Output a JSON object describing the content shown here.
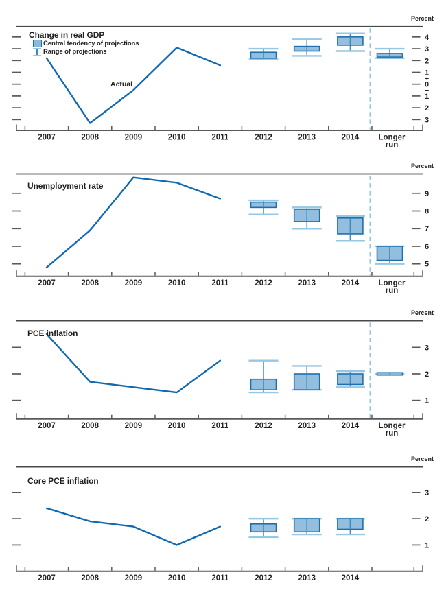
{
  "labels": {
    "percent": "Percent",
    "actual": "Actual",
    "longer_run": [
      "Longer",
      "run"
    ]
  },
  "legend": {
    "central_tendency": "Central tendency of projections",
    "range": "Range of projections"
  },
  "colors": {
    "actual_line": "#1269af",
    "box_fill": "#8bb9da",
    "box_border": "#1e6fad",
    "whisker_cap": "#96c7e4",
    "whisker_line": "#3a8bc2",
    "dashed_divider": "#92c5e3",
    "axis": "#59595b",
    "top_rule": "#48484a",
    "text": "#231f20"
  },
  "chart_data": [
    {
      "type": "line",
      "title": "Change in real GDP",
      "unit": "Percent",
      "categories": [
        "2007",
        "2008",
        "2009",
        "2010",
        "2011"
      ],
      "x": [
        2007,
        2008,
        2009,
        2010,
        2011
      ],
      "values": [
        2.2,
        -3.3,
        -0.5,
        3.1,
        1.6
      ],
      "ylim": [
        -3.91,
        4.88
      ],
      "yticks": [
        4,
        3,
        2,
        1,
        0,
        -1,
        -2,
        -3
      ],
      "ytick_labels": [
        "4",
        "3",
        "2",
        "1",
        "0",
        "1",
        "2",
        "3"
      ],
      "zero_marks": true,
      "grid": false,
      "legend_position": "top-left",
      "projections": [
        {
          "period": "2012",
          "central_tendency": [
            2.2,
            2.7
          ],
          "range": [
            2.1,
            3.0
          ]
        },
        {
          "period": "2013",
          "central_tendency": [
            2.8,
            3.2
          ],
          "range": [
            2.4,
            3.8
          ]
        },
        {
          "period": "2014",
          "central_tendency": [
            3.3,
            4.0
          ],
          "range": [
            2.8,
            4.3
          ]
        },
        {
          "period": "Longer run",
          "central_tendency": [
            2.3,
            2.6
          ],
          "range": [
            2.2,
            3.0
          ]
        }
      ],
      "has_longer_run": true
    },
    {
      "type": "line",
      "title": "Unemployment rate",
      "unit": "Percent",
      "categories": [
        "2007",
        "2008",
        "2009",
        "2010",
        "2011"
      ],
      "x": [
        2007,
        2008,
        2009,
        2010,
        2011
      ],
      "values": [
        4.8,
        6.9,
        9.9,
        9.6,
        8.7
      ],
      "ylim": [
        4.3,
        10.1
      ],
      "yticks": [
        9,
        8,
        7,
        6,
        5
      ],
      "ytick_labels": [
        "9",
        "8",
        "7",
        "6",
        "5"
      ],
      "zero_marks": false,
      "grid": false,
      "projections": [
        {
          "period": "2012",
          "central_tendency": [
            8.2,
            8.5
          ],
          "range": [
            7.8,
            8.6
          ]
        },
        {
          "period": "2013",
          "central_tendency": [
            7.4,
            8.1
          ],
          "range": [
            7.0,
            8.2
          ]
        },
        {
          "period": "2014",
          "central_tendency": [
            6.7,
            7.6
          ],
          "range": [
            6.3,
            7.7
          ]
        },
        {
          "period": "Longer run",
          "central_tendency": [
            5.2,
            6.0
          ],
          "range": [
            5.0,
            6.0
          ]
        }
      ],
      "has_longer_run": true
    },
    {
      "type": "line",
      "title": "PCE inflation",
      "unit": "Percent",
      "categories": [
        "2007",
        "2008",
        "2009",
        "2010",
        "2011"
      ],
      "x": [
        2007,
        2008,
        2009,
        2010,
        2011
      ],
      "values": [
        3.5,
        1.7,
        1.5,
        1.3,
        2.5
      ],
      "ylim": [
        0.3,
        4.0
      ],
      "yticks": [
        3,
        2,
        1
      ],
      "ytick_labels": [
        "3",
        "2",
        "1"
      ],
      "zero_marks": false,
      "grid": false,
      "projections": [
        {
          "period": "2012",
          "central_tendency": [
            1.4,
            1.8
          ],
          "range": [
            1.3,
            2.5
          ]
        },
        {
          "period": "2013",
          "central_tendency": [
            1.4,
            2.0
          ],
          "range": [
            1.4,
            2.3
          ]
        },
        {
          "period": "2014",
          "central_tendency": [
            1.6,
            2.0
          ],
          "range": [
            1.5,
            2.1
          ]
        },
        {
          "period": "Longer run",
          "central_tendency": [
            2.0,
            2.0
          ],
          "range": [
            2.0,
            2.0
          ]
        }
      ],
      "has_longer_run": true
    },
    {
      "type": "line",
      "title": "Core PCE inflation",
      "unit": "Percent",
      "categories": [
        "2007",
        "2008",
        "2009",
        "2010",
        "2011"
      ],
      "x": [
        2007,
        2008,
        2009,
        2010,
        2011
      ],
      "values": [
        2.4,
        1.9,
        1.7,
        1.0,
        1.7
      ],
      "ylim": [
        0.0,
        3.97
      ],
      "yticks": [
        3,
        2,
        1
      ],
      "ytick_labels": [
        "3",
        "2",
        "1"
      ],
      "zero_marks": false,
      "grid": false,
      "projections": [
        {
          "period": "2012",
          "central_tendency": [
            1.5,
            1.8
          ],
          "range": [
            1.3,
            2.0
          ]
        },
        {
          "period": "2013",
          "central_tendency": [
            1.5,
            2.0
          ],
          "range": [
            1.4,
            2.0
          ]
        },
        {
          "period": "2014",
          "central_tendency": [
            1.6,
            2.0
          ],
          "range": [
            1.4,
            2.0
          ]
        }
      ],
      "has_longer_run": false
    }
  ],
  "x_axis": {
    "year_labels": [
      "2007",
      "2008",
      "2009",
      "2010",
      "2011",
      "2012",
      "2013",
      "2014"
    ]
  }
}
